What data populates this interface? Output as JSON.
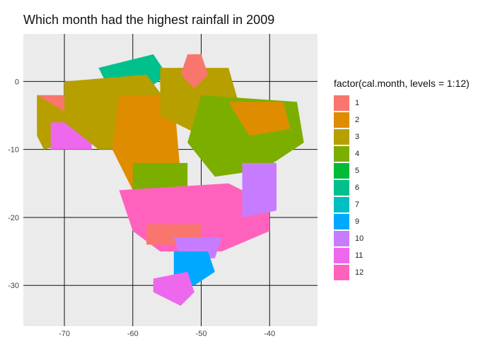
{
  "chart_data": {
    "type": "choropleth-map",
    "title": "Which month had the highest rainfall in 2009",
    "x_ticks": [
      -70,
      -60,
      -50,
      -40
    ],
    "y_ticks": [
      0,
      -10,
      -20,
      -30
    ],
    "xlim": [
      -76,
      -33
    ],
    "ylim": [
      -36,
      7
    ],
    "grid": true,
    "legend": {
      "title": "factor(cal.month, levels = 1:12)",
      "placement": "right",
      "items": [
        {
          "label": "1",
          "color": "#F8766D"
        },
        {
          "label": "2",
          "color": "#DE8C00"
        },
        {
          "label": "3",
          "color": "#B79F00"
        },
        {
          "label": "4",
          "color": "#7CAE00"
        },
        {
          "label": "5",
          "color": "#00BA38"
        },
        {
          "label": "6",
          "color": "#00C08B"
        },
        {
          "label": "7",
          "color": "#00BFC4"
        },
        {
          "label": "9",
          "color": "#00A9FF"
        },
        {
          "label": "10",
          "color": "#C77CFF"
        },
        {
          "label": "11",
          "color": "#ED68ED"
        },
        {
          "label": "12",
          "color": "#FF62BC"
        }
      ]
    },
    "regions": [
      {
        "month": "1",
        "points": [
          [
            -74,
            -2
          ],
          [
            -70,
            -2
          ],
          [
            -69,
            -5
          ],
          [
            -71,
            -8
          ],
          [
            -74,
            -7
          ]
        ]
      },
      {
        "month": "3",
        "points": [
          [
            -74,
            -2
          ],
          [
            -69,
            -5
          ],
          [
            -69,
            -9
          ],
          [
            -73,
            -10
          ],
          [
            -74,
            -8
          ]
        ]
      },
      {
        "month": "11",
        "points": [
          [
            -72,
            -6
          ],
          [
            -66,
            -6
          ],
          [
            -66,
            -10
          ],
          [
            -72,
            -10
          ]
        ]
      },
      {
        "month": "6",
        "points": [
          [
            -65,
            2
          ],
          [
            -57,
            4
          ],
          [
            -55,
            1
          ],
          [
            -59,
            -2
          ],
          [
            -64,
            0
          ]
        ]
      },
      {
        "month": "3",
        "points": [
          [
            -70,
            0
          ],
          [
            -58,
            1
          ],
          [
            -55,
            -3
          ],
          [
            -55,
            -10
          ],
          [
            -65,
            -10
          ],
          [
            -70,
            -6
          ]
        ]
      },
      {
        "month": "2",
        "points": [
          [
            -62,
            -2
          ],
          [
            -54,
            -2
          ],
          [
            -53,
            -14
          ],
          [
            -60,
            -16
          ],
          [
            -63,
            -10
          ]
        ]
      },
      {
        "month": "3",
        "points": [
          [
            -56,
            2
          ],
          [
            -46,
            2
          ],
          [
            -44,
            -5
          ],
          [
            -50,
            -8
          ],
          [
            -56,
            -5
          ]
        ]
      },
      {
        "month": "1",
        "points": [
          [
            -52,
            4
          ],
          [
            -50,
            4
          ],
          [
            -49,
            1
          ],
          [
            -51,
            -1
          ],
          [
            -53,
            1
          ]
        ]
      },
      {
        "month": "4",
        "points": [
          [
            -50,
            -2
          ],
          [
            -36,
            -3
          ],
          [
            -35,
            -9
          ],
          [
            -41,
            -13
          ],
          [
            -48,
            -14
          ],
          [
            -52,
            -9
          ]
        ]
      },
      {
        "month": "2",
        "points": [
          [
            -46,
            -3
          ],
          [
            -38,
            -3
          ],
          [
            -37,
            -7
          ],
          [
            -43,
            -8
          ]
        ]
      },
      {
        "month": "4",
        "points": [
          [
            -60,
            -12
          ],
          [
            -52,
            -12
          ],
          [
            -52,
            -18
          ],
          [
            -60,
            -18
          ]
        ]
      },
      {
        "month": "12",
        "points": [
          [
            -62,
            -16
          ],
          [
            -46,
            -15
          ],
          [
            -40,
            -18
          ],
          [
            -40,
            -22
          ],
          [
            -47,
            -25
          ],
          [
            -56,
            -25
          ],
          [
            -60,
            -22
          ]
        ]
      },
      {
        "month": "10",
        "points": [
          [
            -44,
            -12
          ],
          [
            -39,
            -12
          ],
          [
            -39,
            -19
          ],
          [
            -44,
            -20
          ]
        ]
      },
      {
        "month": "1",
        "points": [
          [
            -58,
            -21
          ],
          [
            -50,
            -21
          ],
          [
            -50,
            -24
          ],
          [
            -58,
            -24
          ]
        ]
      },
      {
        "month": "10",
        "points": [
          [
            -54,
            -23
          ],
          [
            -47,
            -23
          ],
          [
            -48,
            -26
          ],
          [
            -53,
            -26
          ]
        ]
      },
      {
        "month": "9",
        "points": [
          [
            -54,
            -25
          ],
          [
            -49,
            -25
          ],
          [
            -48,
            -28
          ],
          [
            -51,
            -30
          ],
          [
            -54,
            -29
          ]
        ]
      },
      {
        "month": "11",
        "points": [
          [
            -57,
            -29
          ],
          [
            -52,
            -28
          ],
          [
            -51,
            -31
          ],
          [
            -53,
            -33
          ],
          [
            -57,
            -31
          ]
        ]
      }
    ]
  }
}
